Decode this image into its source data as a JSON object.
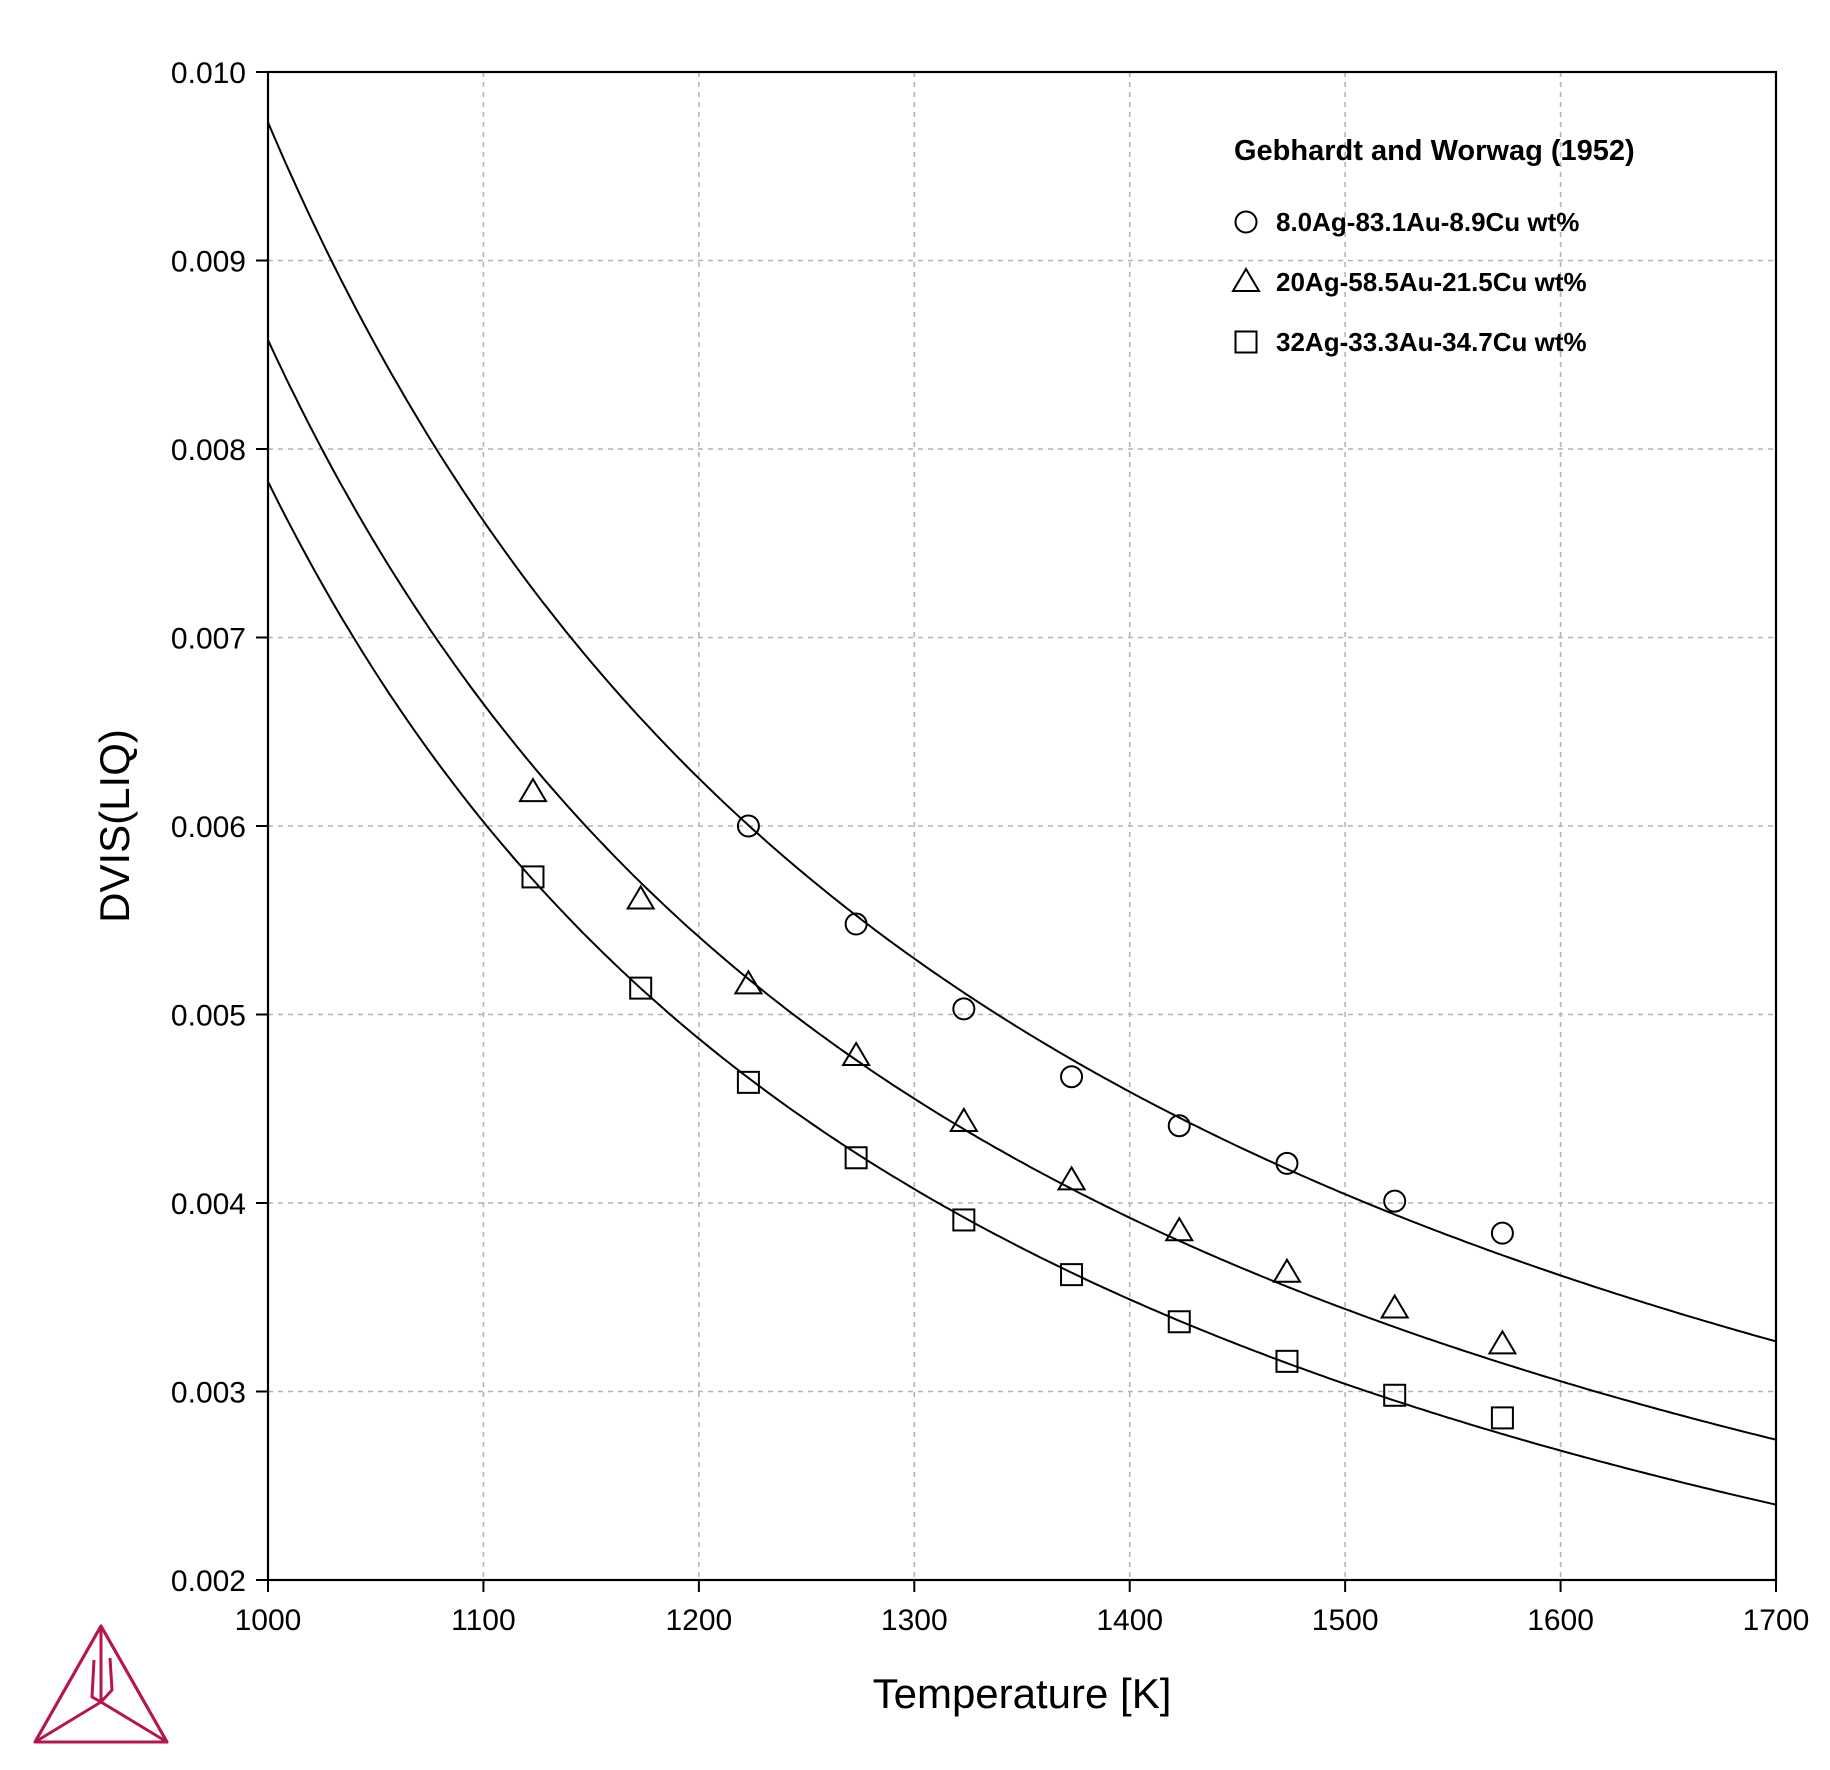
{
  "chart_data": {
    "type": "line",
    "xlabel": "Temperature [K]",
    "ylabel": "DVIS(LIQ)",
    "xlim": [
      1000,
      1700
    ],
    "ylim": [
      0.002,
      0.01
    ],
    "xticks": [
      1000,
      1100,
      1200,
      1300,
      1400,
      1500,
      1600,
      1700
    ],
    "xtick_labels": [
      "1000",
      "1100",
      "1200",
      "1300",
      "1400",
      "1500",
      "1600",
      "1700"
    ],
    "yticks": [
      0.002,
      0.003,
      0.004,
      0.005,
      0.006,
      0.007,
      0.008,
      0.009,
      0.01
    ],
    "ytick_labels": [
      "0.002",
      "0.003",
      "0.004",
      "0.005",
      "0.006",
      "0.007",
      "0.008",
      "0.009",
      "0.010"
    ],
    "grid": true,
    "legend_title": "Gebhardt and Worwag (1952)",
    "legend_position": "top-right",
    "series": [
      {
        "name": "8.0Ag-83.1Au-8.9Cu wt%",
        "marker": "circle",
        "points": {
          "x": [
            1223,
            1273,
            1323,
            1373,
            1423,
            1473,
            1523,
            1573
          ],
          "y": [
            0.006,
            0.00548,
            0.00503,
            0.00467,
            0.00441,
            0.00421,
            0.00401,
            0.00384
          ]
        },
        "curve": {
          "x": [
            1000,
            1100,
            1200,
            1300,
            1400,
            1500,
            1600,
            1700
          ],
          "y": [
            0.00972,
            0.00765,
            0.00626,
            0.00528,
            0.00457,
            0.00403,
            0.00362,
            0.00329
          ]
        }
      },
      {
        "name": "20Ag-58.5Au-21.5Cu wt%",
        "marker": "triangle",
        "points": {
          "x": [
            1123,
            1173,
            1223,
            1273,
            1323,
            1373,
            1423,
            1473,
            1523,
            1573
          ],
          "y": [
            0.00618,
            0.00561,
            0.00516,
            0.00478,
            0.00443,
            0.00412,
            0.00385,
            0.00363,
            0.00344,
            0.00325
          ]
        },
        "curve": {
          "x": [
            1000,
            1100,
            1200,
            1300,
            1400,
            1500,
            1600,
            1700
          ],
          "y": [
            0.00856,
            0.00669,
            0.00542,
            0.00454,
            0.00389,
            0.00341,
            0.00306,
            0.00278
          ]
        }
      },
      {
        "name": "32Ag-33.3Au-34.7Cu wt%",
        "marker": "square",
        "points": {
          "x": [
            1123,
            1173,
            1223,
            1273,
            1323,
            1373,
            1423,
            1473,
            1523,
            1573
          ],
          "y": [
            0.00573,
            0.00514,
            0.00464,
            0.00424,
            0.00391,
            0.00362,
            0.00337,
            0.00316,
            0.00298,
            0.00286
          ]
        },
        "curve": {
          "x": [
            1000,
            1100,
            1200,
            1300,
            1400,
            1500,
            1600,
            1700
          ],
          "y": [
            0.00781,
            0.00606,
            0.00489,
            0.00406,
            0.00345,
            0.003,
            0.00269,
            0.00245
          ]
        }
      }
    ]
  },
  "logo": {
    "icon": "thermo-calc-triangle-icon",
    "color": "#b5174a"
  }
}
